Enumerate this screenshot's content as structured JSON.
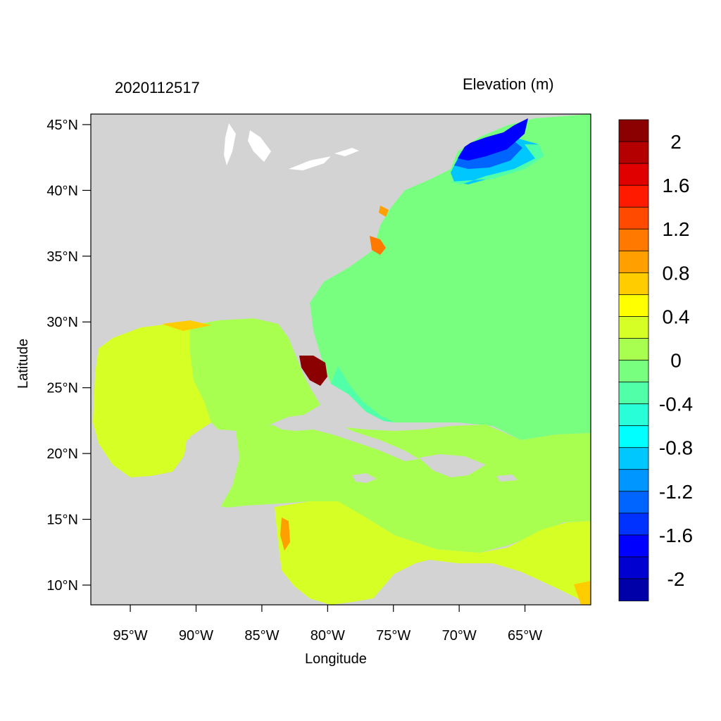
{
  "title_left": "2020112517",
  "title_right": "Elevation (m)",
  "xlabel": "Longitude",
  "ylabel": "Latitude",
  "map": {
    "lon_range": [
      -98,
      -60
    ],
    "lat_range": [
      8.5,
      45.8
    ],
    "land_color": "#d3d3d3",
    "lon_ticks": [
      "95°W",
      "90°W",
      "85°W",
      "80°W",
      "75°W",
      "70°W",
      "65°W"
    ],
    "lon_values": [
      -95,
      -90,
      -85,
      -80,
      -75,
      -70,
      -65
    ],
    "lat_ticks": [
      "45°N",
      "40°N",
      "35°N",
      "30°N",
      "25°N",
      "20°N",
      "15°N",
      "10°N"
    ],
    "lat_values": [
      45,
      40,
      35,
      30,
      25,
      20,
      15,
      10
    ]
  },
  "colorbar": {
    "colors": [
      "#8b0000",
      "#b40000",
      "#e10000",
      "#ff1a00",
      "#ff4a00",
      "#ff7800",
      "#ffa000",
      "#ffcc00",
      "#ffff00",
      "#d6ff26",
      "#a8ff50",
      "#78ff80",
      "#50ffa8",
      "#28ffd8",
      "#00ffff",
      "#00c8ff",
      "#0096ff",
      "#0064ff",
      "#0032ff",
      "#0000ff",
      "#0000d0",
      "#0000a8"
    ],
    "labels": [
      "2",
      "1.6",
      "1.2",
      "0.8",
      "0.4",
      "0",
      "-0.4",
      "-0.8",
      "-1.2",
      "-1.6",
      "-2"
    ]
  }
}
